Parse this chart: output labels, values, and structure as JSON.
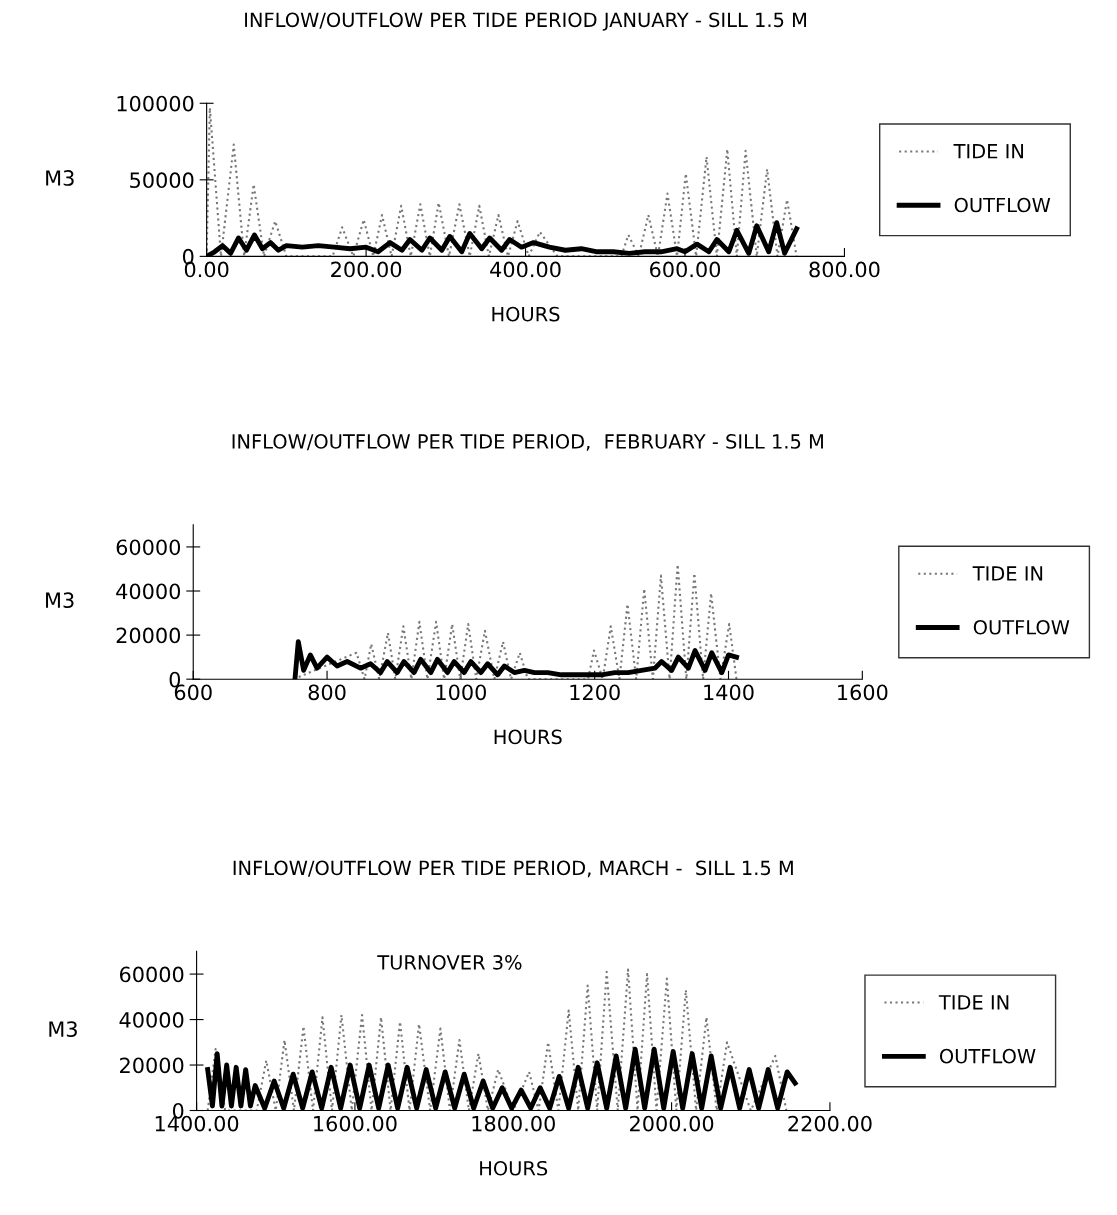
{
  "chart_data": [
    {
      "type": "line",
      "title": "INFLOW/OUTFLOW PER TIDE PERIOD JANUARY - SILL 1.5 M",
      "xlabel": "HOURS",
      "ylabel": "M3",
      "xlim": [
        0,
        800
      ],
      "xticks": [
        {
          "value": 0,
          "label": "0.00"
        },
        {
          "value": 200,
          "label": "200.00"
        },
        {
          "value": 400,
          "label": "400.00"
        },
        {
          "value": 600,
          "label": "600.00"
        },
        {
          "value": 800,
          "label": "800.00"
        }
      ],
      "ylim": [
        0,
        100000
      ],
      "yticks": [
        0,
        50000,
        100000
      ],
      "grid": false,
      "legend": "right",
      "series": [
        {
          "name": "TIDE IN",
          "color": "#777777",
          "line_style": "dotted",
          "x": [
            0,
            4,
            18,
            34,
            47,
            59,
            72,
            86,
            100,
            140,
            158,
            170,
            184,
            197,
            209,
            220,
            232,
            244,
            256,
            268,
            280,
            291,
            304,
            317,
            330,
            342,
            354,
            366,
            378,
            390,
            404,
            418,
            440,
            520,
            529,
            542,
            554,
            566,
            578,
            590,
            601,
            614,
            627,
            640,
            653,
            665,
            676,
            690,
            703,
            716,
            728,
            740
          ],
          "values": [
            0,
            97000,
            0,
            73000,
            0,
            47000,
            0,
            23000,
            0,
            0,
            0,
            19000,
            0,
            24000,
            0,
            27000,
            0,
            33000,
            0,
            34000,
            0,
            35000,
            0,
            34000,
            0,
            33000,
            0,
            27000,
            0,
            23000,
            0,
            16000,
            0,
            0,
            14000,
            0,
            27000,
            0,
            41000,
            0,
            54000,
            0,
            65000,
            0,
            70000,
            0,
            69000,
            0,
            57000,
            0,
            37000,
            0
          ]
        },
        {
          "name": "OUTFLOW",
          "color": "#000000",
          "line_style": "solid",
          "x": [
            0,
            10,
            20,
            30,
            40,
            50,
            60,
            70,
            80,
            90,
            100,
            120,
            140,
            160,
            180,
            200,
            215,
            230,
            245,
            255,
            270,
            280,
            295,
            305,
            320,
            330,
            345,
            355,
            370,
            380,
            395,
            410,
            430,
            450,
            470,
            490,
            510,
            530,
            550,
            570,
            590,
            600,
            615,
            630,
            640,
            655,
            665,
            680,
            690,
            705,
            715,
            725,
            740
          ],
          "values": [
            0,
            3000,
            7000,
            2000,
            12000,
            4000,
            14000,
            5000,
            9000,
            4000,
            7000,
            6000,
            7000,
            6000,
            5000,
            6000,
            3000,
            9000,
            4000,
            11000,
            4000,
            12000,
            4000,
            13000,
            3000,
            15000,
            5000,
            12000,
            4000,
            11000,
            6000,
            9000,
            6000,
            4000,
            5000,
            3000,
            3000,
            2000,
            3000,
            3000,
            5000,
            3000,
            8000,
            3000,
            11000,
            3000,
            17000,
            2000,
            20000,
            3000,
            22000,
            2000,
            18000
          ]
        }
      ]
    },
    {
      "type": "line",
      "title": "INFLOW/OUTFLOW PER TIDE PERIOD,  FEBRUARY - SILL 1.5 M",
      "xlabel": "HOURS",
      "ylabel": "M3",
      "xlim": [
        600,
        1600
      ],
      "xticks": [
        600,
        800,
        1000,
        1200,
        1400,
        1600
      ],
      "ylim": [
        0,
        70000
      ],
      "yticks": [
        0,
        20000,
        40000,
        60000
      ],
      "grid": false,
      "legend": "right",
      "series": [
        {
          "name": "TIDE IN",
          "color": "#777777",
          "line_style": "dotted",
          "x": [
            750,
            844,
            856,
            866,
            878,
            891,
            902,
            914,
            926,
            938,
            950,
            963,
            975,
            987,
            999,
            1011,
            1023,
            1036,
            1050,
            1063,
            1075,
            1088,
            1100,
            1190,
            1199,
            1212,
            1224,
            1237,
            1249,
            1262,
            1274,
            1287,
            1299,
            1312,
            1324,
            1337,
            1349,
            1362,
            1374,
            1388,
            1401,
            1412
          ],
          "values": [
            0,
            12000,
            0,
            16000,
            0,
            21000,
            0,
            24000,
            0,
            26000,
            0,
            26000,
            0,
            25000,
            0,
            25000,
            0,
            22000,
            0,
            17000,
            0,
            12000,
            0,
            0,
            13000,
            0,
            24000,
            0,
            34000,
            0,
            41000,
            0,
            47000,
            0,
            52000,
            0,
            48000,
            0,
            39000,
            0,
            25000,
            0
          ]
        },
        {
          "name": "OUTFLOW",
          "color": "#000000",
          "line_style": "solid",
          "x": [
            752,
            757,
            765,
            775,
            785,
            800,
            815,
            830,
            850,
            865,
            880,
            890,
            905,
            915,
            930,
            940,
            955,
            965,
            980,
            990,
            1005,
            1015,
            1030,
            1040,
            1055,
            1065,
            1080,
            1095,
            1110,
            1130,
            1150,
            1170,
            1190,
            1210,
            1230,
            1250,
            1270,
            1290,
            1300,
            1315,
            1325,
            1340,
            1350,
            1365,
            1375,
            1390,
            1400,
            1412
          ],
          "values": [
            0,
            17000,
            4000,
            11000,
            5000,
            10000,
            6000,
            8000,
            5000,
            7000,
            3000,
            8000,
            3000,
            8000,
            3000,
            9000,
            3000,
            9000,
            3000,
            8000,
            3000,
            8000,
            3000,
            7000,
            2000,
            6000,
            3000,
            4000,
            3000,
            3000,
            2000,
            2000,
            2000,
            2000,
            3000,
            3000,
            4000,
            5000,
            8000,
            4000,
            10000,
            5000,
            13000,
            4000,
            12000,
            3000,
            11000,
            10000
          ]
        }
      ]
    },
    {
      "type": "line",
      "title": "INFLOW/OUTFLOW PER TIDE PERIOD, MARCH -  SILL 1.5 M",
      "xlabel": "HOURS",
      "ylabel": "M3",
      "annotations": [
        "TURNOVER 3%"
      ],
      "xlim": [
        1400,
        2200
      ],
      "xticks": [
        {
          "value": 1400,
          "label": "1400.00"
        },
        {
          "value": 1600,
          "label": "1600.00"
        },
        {
          "value": 1800,
          "label": "1800.00"
        },
        {
          "value": 2000,
          "label": "2000.00"
        },
        {
          "value": 2200,
          "label": "2200.00"
        }
      ],
      "ylim": [
        0,
        70000
      ],
      "yticks": [
        0,
        20000,
        40000,
        60000
      ],
      "grid": false,
      "legend": "right",
      "series": [
        {
          "name": "TIDE IN",
          "color": "#777777",
          "line_style": "dotted",
          "x": [
            1414,
            1424,
            1436,
            1476,
            1488,
            1500,
            1511,
            1523,
            1535,
            1547,
            1559,
            1571,
            1583,
            1596,
            1609,
            1621,
            1633,
            1645,
            1657,
            1669,
            1681,
            1695,
            1708,
            1720,
            1732,
            1744,
            1756,
            1768,
            1781,
            1800,
            1820,
            1832,
            1844,
            1857,
            1870,
            1882,
            1894,
            1906,
            1918,
            1932,
            1945,
            1957,
            1969,
            1981,
            1994,
            2006,
            2018,
            2031,
            2044,
            2057,
            2070,
            2100,
            2131,
            2145
          ],
          "values": [
            0,
            27000,
            0,
            0,
            22000,
            0,
            31000,
            0,
            37000,
            0,
            41000,
            0,
            42000,
            0,
            42000,
            0,
            41000,
            0,
            39000,
            0,
            38000,
            0,
            36000,
            0,
            31000,
            0,
            25000,
            0,
            18000,
            0,
            17000,
            0,
            30000,
            0,
            44000,
            0,
            55000,
            0,
            61000,
            0,
            62000,
            0,
            60000,
            0,
            58000,
            0,
            53000,
            0,
            41000,
            0,
            30000,
            0,
            24000,
            0
          ]
        },
        {
          "name": "OUTFLOW",
          "color": "#000000",
          "line_style": "solid",
          "x": [
            1414,
            1420,
            1426,
            1432,
            1438,
            1444,
            1450,
            1456,
            1462,
            1468,
            1474,
            1486,
            1498,
            1510,
            1522,
            1534,
            1546,
            1558,
            1570,
            1582,
            1594,
            1606,
            1618,
            1630,
            1642,
            1654,
            1666,
            1678,
            1690,
            1702,
            1714,
            1726,
            1738,
            1750,
            1762,
            1774,
            1786,
            1798,
            1810,
            1822,
            1834,
            1846,
            1858,
            1870,
            1882,
            1894,
            1906,
            1918,
            1930,
            1942,
            1954,
            1966,
            1978,
            1990,
            2002,
            2014,
            2026,
            2038,
            2050,
            2062,
            2074,
            2086,
            2098,
            2110,
            2122,
            2134,
            2146,
            2156
          ],
          "values": [
            18000,
            2000,
            25000,
            2000,
            20000,
            2000,
            19000,
            2000,
            18000,
            2000,
            11000,
            1000,
            13000,
            1000,
            16000,
            1000,
            17000,
            1000,
            19000,
            1000,
            20000,
            1000,
            20000,
            1000,
            20000,
            1000,
            19000,
            1000,
            18000,
            1000,
            17000,
            1000,
            16000,
            1000,
            13000,
            1000,
            10000,
            1000,
            9000,
            1000,
            10000,
            1000,
            15000,
            1000,
            19000,
            1000,
            21000,
            1000,
            24000,
            1000,
            27000,
            1000,
            27000,
            1000,
            26000,
            1000,
            25000,
            1000,
            24000,
            1000,
            19000,
            1000,
            18000,
            1000,
            18000,
            1000,
            17000,
            12000
          ]
        }
      ]
    }
  ]
}
